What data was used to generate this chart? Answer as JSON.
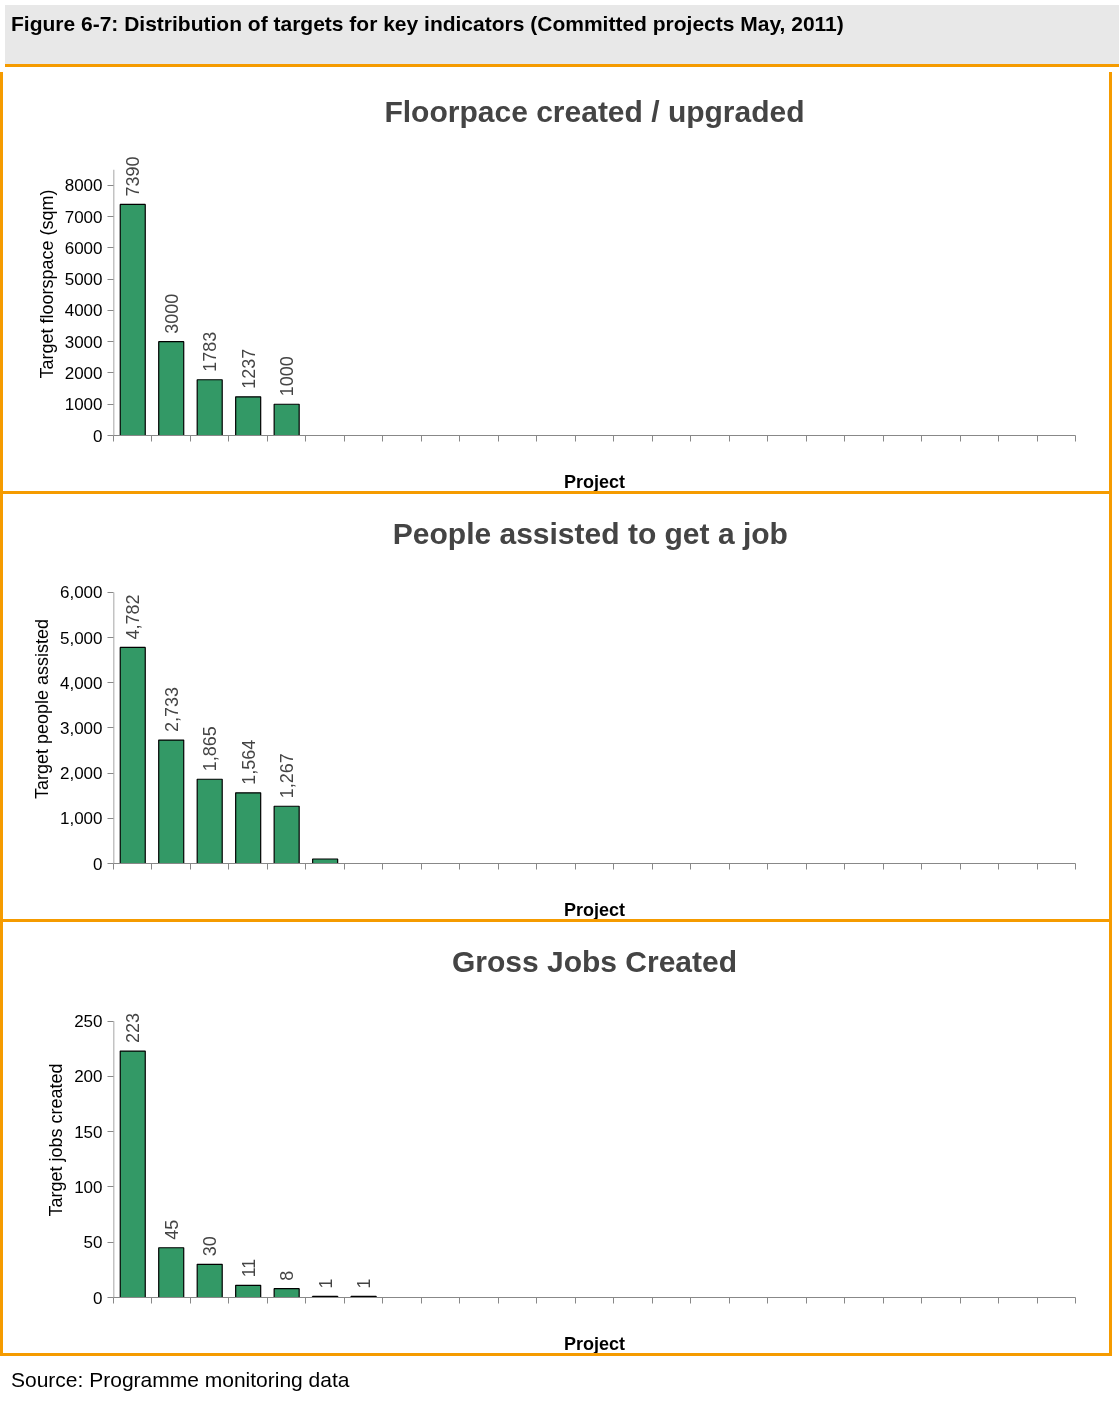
{
  "chart_data": [
    {
      "type": "bar",
      "title": "Floorpace created / upgraded",
      "xlabel": "Project",
      "ylabel": "Target floorspace (sqm)",
      "annotations": [
        "Figure 6-7: Distribution of targets for key indicators (Committed projects May, 2011)"
      ],
      "categories": [
        null,
        null,
        null,
        null,
        null,
        null,
        null,
        null,
        null,
        null,
        null,
        null,
        null,
        null,
        null,
        null,
        null,
        null,
        null,
        null,
        null,
        null,
        null,
        null,
        null
      ],
      "values": [
        7390,
        3000,
        1783,
        1237,
        1000,
        null,
        null,
        null,
        null,
        null,
        null,
        null,
        null,
        null,
        null,
        null,
        null,
        null,
        null,
        null,
        null,
        null,
        null,
        null,
        null
      ],
      "value_labels": [
        "7390",
        "3000",
        "1783",
        "1237",
        "1000",
        null,
        null,
        null,
        null,
        null,
        null,
        null,
        null,
        null,
        null,
        null,
        null,
        null,
        null,
        null,
        null,
        null,
        null,
        null,
        null
      ],
      "color": "#339966",
      "ylim": [
        0,
        8500
      ],
      "yticks": [
        0,
        1000,
        2000,
        3000,
        4000,
        5000,
        6000,
        7000,
        8000
      ],
      "grid": false,
      "tick_labels": "y"
    },
    {
      "type": "bar",
      "title": "People assisted  to get a job",
      "xlabel": "Project",
      "ylabel": "Target people assisted",
      "categories": [
        null,
        null,
        null,
        null,
        null,
        null,
        null,
        null,
        null,
        null,
        null,
        null,
        null,
        null,
        null,
        null,
        null,
        null,
        null,
        null,
        null,
        null,
        null,
        null,
        null
      ],
      "values": [
        4782,
        2733,
        1865,
        1564,
        1267,
        100,
        null,
        null,
        null,
        null,
        null,
        null,
        null,
        null,
        null,
        null,
        null,
        null,
        null,
        null,
        null,
        null,
        null,
        null,
        null
      ],
      "value_labels": [
        "4,782",
        "2,733",
        "1,865",
        "1,564",
        "1,267",
        null,
        null,
        null,
        null,
        null,
        null,
        null,
        null,
        null,
        null,
        null,
        null,
        null,
        null,
        null,
        null,
        null,
        null,
        null,
        null
      ],
      "color": "#339966",
      "ylim": [
        0,
        6000
      ],
      "yticks": [
        {
          "value": 0,
          "label": "0"
        },
        {
          "value": 1000,
          "label": "1,000"
        },
        {
          "value": 2000,
          "label": "2,000"
        },
        {
          "value": 3000,
          "label": "3,000"
        },
        {
          "value": 4000,
          "label": "4,000"
        },
        {
          "value": 5000,
          "label": "5,000"
        },
        {
          "value": 6000,
          "label": "6,000"
        }
      ],
      "grid": false,
      "tick_labels": "y"
    },
    {
      "type": "bar",
      "title": "Gross Jobs Created",
      "xlabel": "Project",
      "ylabel": "Target jobs created",
      "annotations": [
        "Source: Programme monitoring data"
      ],
      "categories": [
        null,
        null,
        null,
        null,
        null,
        null,
        null,
        null,
        null,
        null,
        null,
        null,
        null,
        null,
        null,
        null,
        null,
        null,
        null,
        null,
        null,
        null,
        null,
        null,
        null
      ],
      "values": [
        223,
        45,
        30,
        11,
        8,
        1,
        1,
        null,
        null,
        null,
        null,
        null,
        null,
        null,
        null,
        null,
        null,
        null,
        null,
        null,
        null,
        null,
        null,
        null,
        null
      ],
      "value_labels": [
        "223",
        "45",
        "30",
        "11",
        "8",
        "1",
        "1",
        null,
        null,
        null,
        null,
        null,
        null,
        null,
        null,
        null,
        null,
        null,
        null,
        null,
        null,
        null,
        null,
        null,
        null
      ],
      "color": "#339966",
      "ylim": [
        0,
        250
      ],
      "yticks": [
        0,
        50,
        100,
        150,
        200,
        250
      ],
      "grid": false,
      "tick_labels": "y"
    }
  ]
}
